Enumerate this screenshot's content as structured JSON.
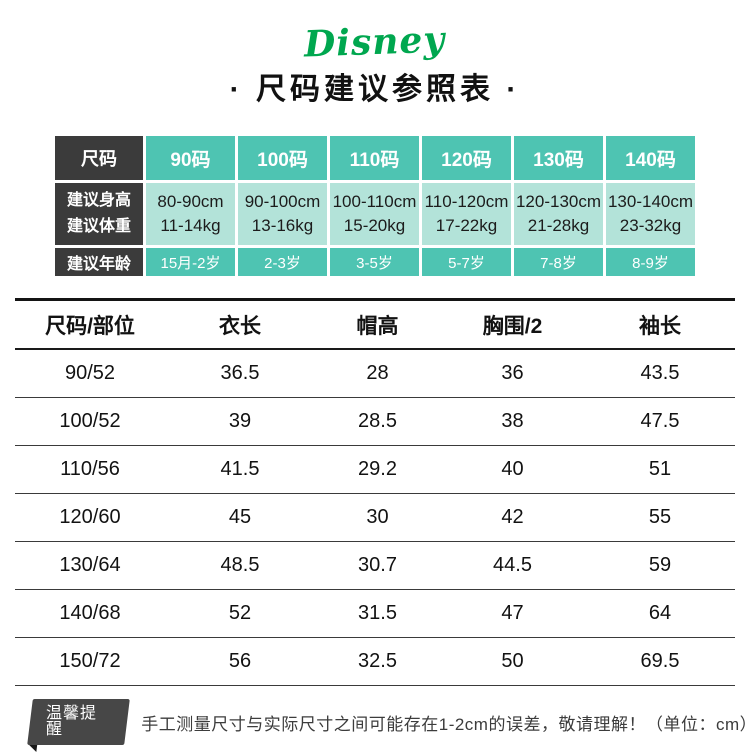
{
  "brand": {
    "logo_text": "Disney"
  },
  "page_title": "· 尺码建议参照表 ·",
  "size_chart": {
    "corner_label": "尺码",
    "row_height_label": "建议身高",
    "row_weight_label": "建议体重",
    "row_age_label": "建议年龄",
    "columns": [
      {
        "size": "90码",
        "height": "80-90cm",
        "weight": "11-14kg",
        "age": "15月-2岁"
      },
      {
        "size": "100码",
        "height": "90-100cm",
        "weight": "13-16kg",
        "age": "2-3岁"
      },
      {
        "size": "110码",
        "height": "100-110cm",
        "weight": "15-20kg",
        "age": "3-5岁"
      },
      {
        "size": "120码",
        "height": "110-120cm",
        "weight": "17-22kg",
        "age": "5-7岁"
      },
      {
        "size": "130码",
        "height": "120-130cm",
        "weight": "21-28kg",
        "age": "7-8岁"
      },
      {
        "size": "140码",
        "height": "130-140cm",
        "weight": "23-32kg",
        "age": "8-9岁"
      }
    ]
  },
  "measurement_table": {
    "headers": [
      "尺码/部位",
      "衣长",
      "帽高",
      "胸围/2",
      "袖长"
    ],
    "rows": [
      [
        "90/52",
        "36.5",
        "28",
        "36",
        "43.5"
      ],
      [
        "100/52",
        "39",
        "28.5",
        "38",
        "47.5"
      ],
      [
        "110/56",
        "41.5",
        "29.2",
        "40",
        "51"
      ],
      [
        "120/60",
        "45",
        "30",
        "42",
        "55"
      ],
      [
        "130/64",
        "48.5",
        "30.7",
        "44.5",
        "59"
      ],
      [
        "140/68",
        "52",
        "31.5",
        "47",
        "64"
      ],
      [
        "150/72",
        "56",
        "32.5",
        "50",
        "69.5"
      ]
    ]
  },
  "footer": {
    "badge": "温馨提醒",
    "note": "手工测量尺寸与实际尺寸之间可能存在1-2cm的误差，敬请理解！（单位：cm）"
  },
  "colors": {
    "teal": "#4ec4b2",
    "light_teal": "#b3e3d9",
    "dark_cell": "#3b3b3b",
    "logo_green": "#00a74f"
  }
}
